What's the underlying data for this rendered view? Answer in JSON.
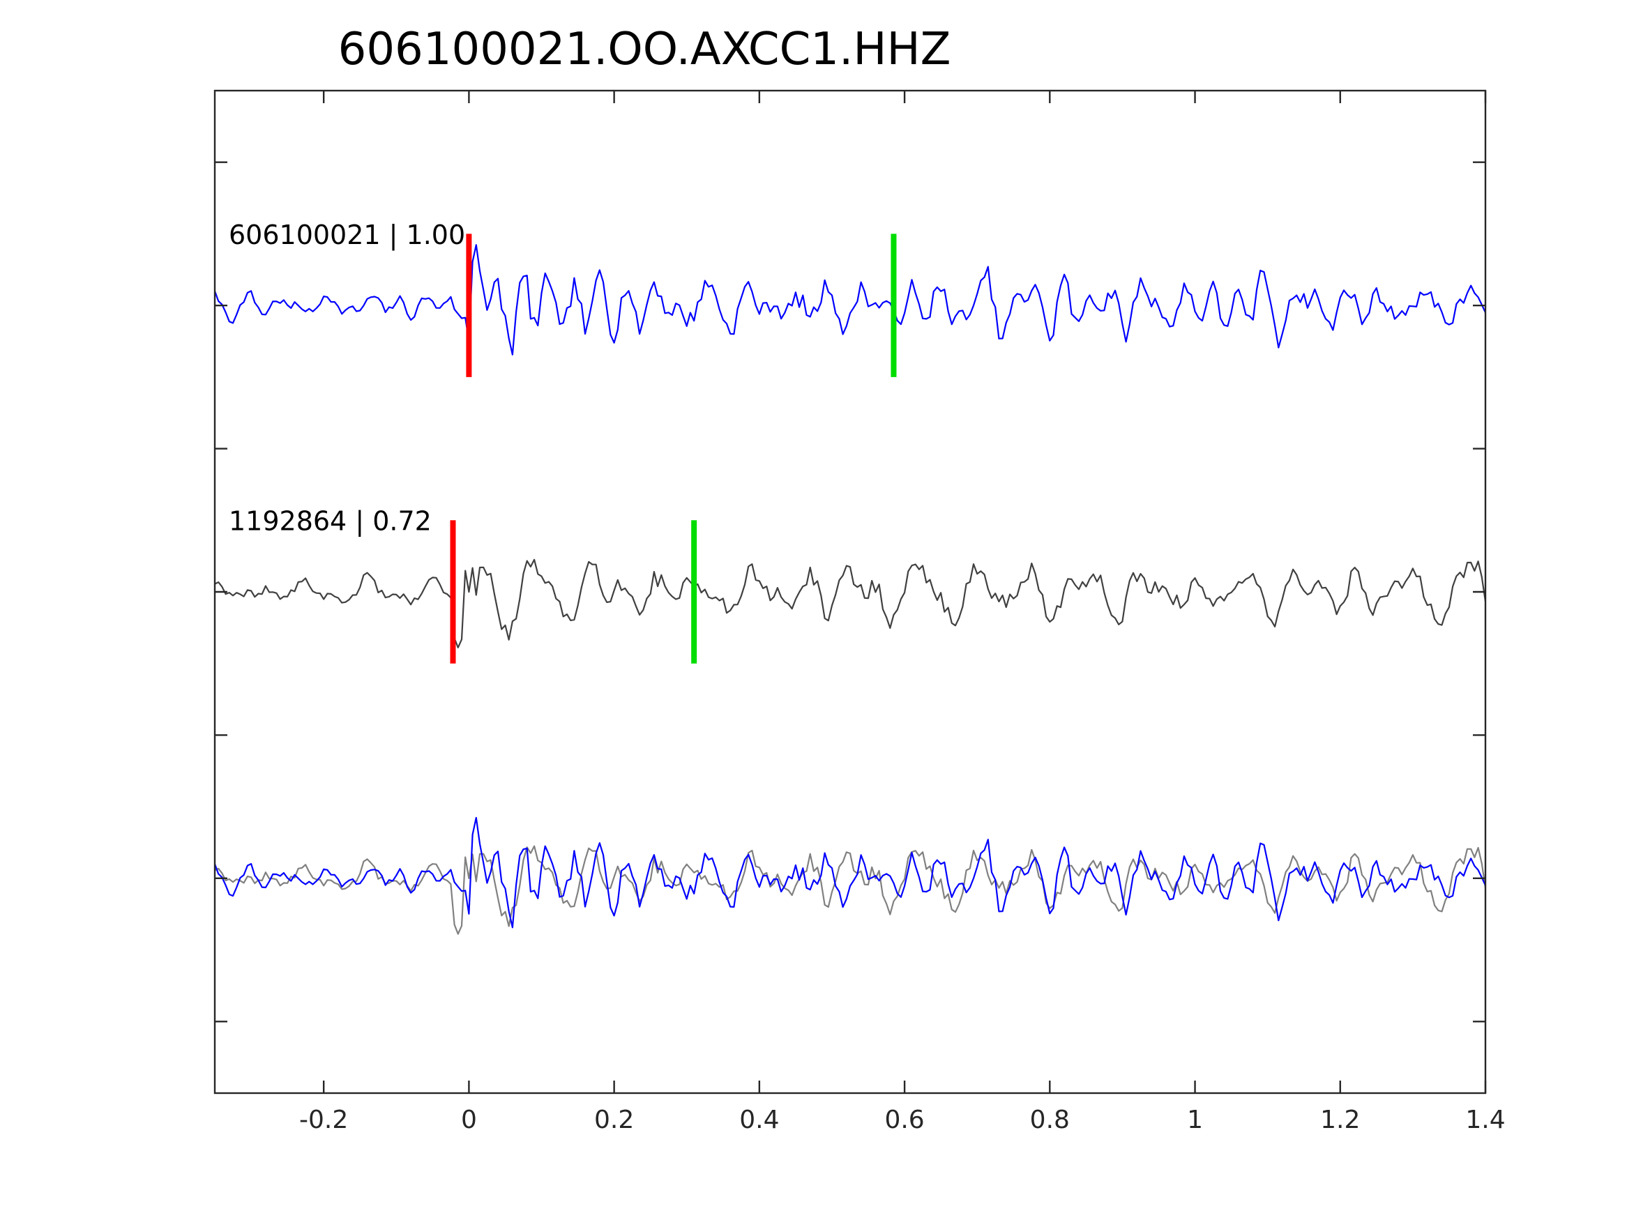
{
  "chart_data": {
    "type": "line",
    "title": "606100021.OO.AXCC1.HHZ",
    "xlabel": "",
    "ylabel": "",
    "xlim": [
      -0.35,
      1.4
    ],
    "ylim": [
      -1.5,
      5.5
    ],
    "grid": false,
    "x_ticks": [
      -0.2,
      0,
      0.2,
      0.4,
      0.6,
      0.8,
      1,
      1.2,
      1.4
    ],
    "x_tick_labels": [
      "-0.2",
      "0",
      "0.2",
      "0.4",
      "0.6",
      "0.8",
      "1",
      "1.2",
      "1.4"
    ],
    "y_ticks": [
      -1,
      0,
      1,
      2,
      3,
      4,
      5
    ],
    "traces": [
      {
        "label": "606100021 | 1.00",
        "offset": 4,
        "color": "#0000ff",
        "x_start": -0.35,
        "x_step": 0.005,
        "seed": 7,
        "amplitude": 0.28,
        "onset": 0,
        "pick_p": 0.0,
        "pick_s": 0.585
      },
      {
        "label": "1192864 | 0.72",
        "offset": 2,
        "color": "#404040",
        "x_start": -0.35,
        "x_step": 0.005,
        "seed": 19,
        "amplitude": 0.28,
        "onset": -0.02,
        "pick_p": -0.022,
        "pick_s": 0.31
      }
    ],
    "overlay": {
      "offset": 0,
      "colors": [
        "#0000ff",
        "#808080"
      ]
    },
    "pick_colors": {
      "p": "#ff0000",
      "s": "#00dd00"
    },
    "pick_half_height": 0.5
  }
}
